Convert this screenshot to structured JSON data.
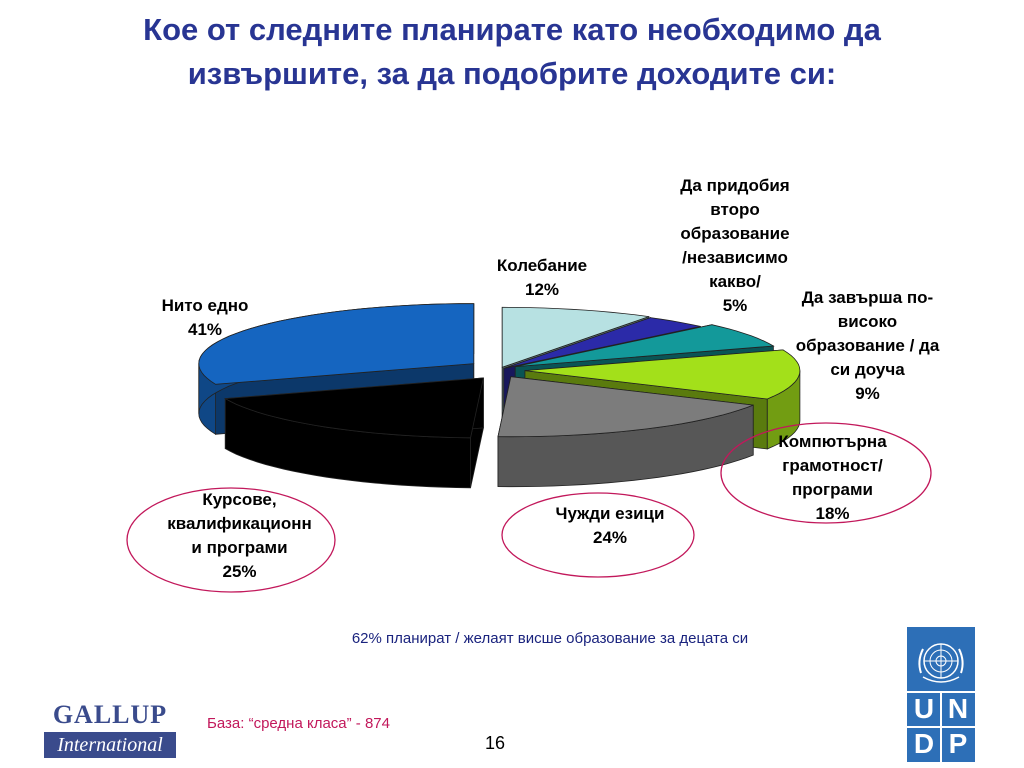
{
  "title": {
    "line1": "Кое от следните планирате като необходимо да",
    "line2": "извършите, за да подобрите доходите си:"
  },
  "chart_data": {
    "type": "pie",
    "title": "Кое от следните планирате като необходимо да извършите, за да подобрите доходите си:",
    "slices": [
      {
        "key": "kolebanie",
        "label_lines": [
          "Колебание"
        ],
        "value": 12,
        "value_label": "12%",
        "color": "#b7e1e2"
      },
      {
        "key": "vtoro",
        "label_lines": [
          "Да придобия",
          "второ",
          "образование",
          "/независимо",
          "какво/"
        ],
        "value": 5,
        "value_label": "5%",
        "color": "#2b2aa8"
      },
      {
        "key": "visoko",
        "label_lines": [
          "Да завърша по-",
          "високо",
          "образование / да",
          "си доуча"
        ],
        "value": 9,
        "value_label": "9%",
        "color": "#13999a"
      },
      {
        "key": "komp",
        "label_lines": [
          "Компютърна",
          "грамотност/",
          "програми"
        ],
        "value": 18,
        "value_label": "18%",
        "color": "#a3e01a"
      },
      {
        "key": "chuzhdi",
        "label_lines": [
          "Чужди езици"
        ],
        "value": 24,
        "value_label": "24%",
        "color": "#7c7c7c"
      },
      {
        "key": "kursove",
        "label_lines": [
          "Курсове,",
          "квалификационн",
          "и програми"
        ],
        "value": 25,
        "value_label": "25%",
        "color": "#000000"
      },
      {
        "key": "nito",
        "label_lines": [
          "Нито едно"
        ],
        "value": 41,
        "value_label": "41%",
        "color": "#1565c0"
      }
    ]
  },
  "note": "62% планират / желаят висше образование за децата си",
  "base": "База: “средна класа” - 874",
  "page_number": "16",
  "gallup": {
    "line1": "GALLUP",
    "line2": "International"
  },
  "undp": {
    "letters": [
      "U",
      "N",
      "D",
      "P"
    ]
  }
}
